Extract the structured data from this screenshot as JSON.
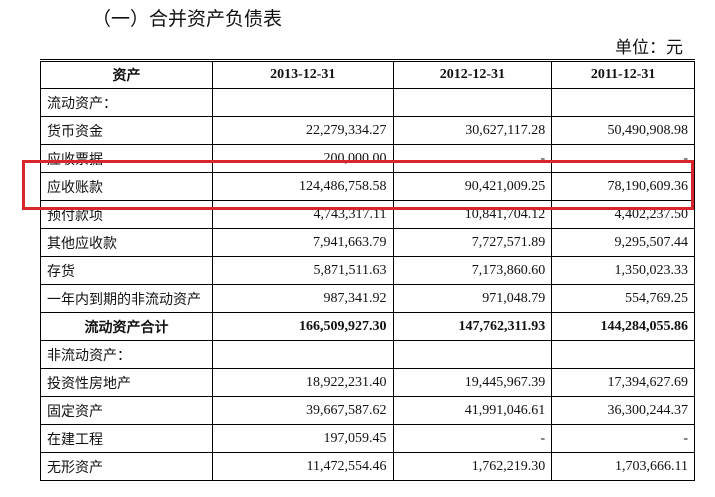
{
  "header": {
    "title": "（一）合并资产负债表",
    "unit": "单位：元"
  },
  "table": {
    "columns": [
      "资产",
      "2013-12-31",
      "2012-12-31",
      "2011-12-31"
    ],
    "rows": [
      {
        "cells": [
          "流动资产："
        ]
      },
      {
        "cells": [
          "货币资金",
          "22,279,334.27",
          "30,627,117.28",
          "50,490,908.98"
        ]
      },
      {
        "cells": [
          "应收票据",
          "200,000.00",
          "-",
          "-"
        ]
      },
      {
        "cells": [
          "应收账款",
          "124,486,758.58",
          "90,421,009.25",
          "78,190,609.36"
        ]
      },
      {
        "cells": [
          "预付款项",
          "4,743,317.11",
          "10,841,704.12",
          "4,402,237.50"
        ]
      },
      {
        "cells": [
          "其他应收款",
          "7,941,663.79",
          "7,727,571.89",
          "9,295,507.44"
        ]
      },
      {
        "cells": [
          "存货",
          "5,871,511.63",
          "7,173,860.60",
          "1,350,023.33"
        ]
      },
      {
        "cells": [
          "一年内到期的非流动资产",
          "987,341.92",
          "971,048.79",
          "554,769.25"
        ]
      },
      {
        "cells": [
          "流动资产合计",
          "166,509,927.30",
          "147,762,311.93",
          "144,284,055.86"
        ],
        "bold": true
      },
      {
        "cells": [
          "非流动资产："
        ]
      },
      {
        "cells": [
          "投资性房地产",
          "18,922,231.40",
          "19,445,967.39",
          "17,394,627.69"
        ]
      },
      {
        "cells": [
          "固定资产",
          "39,667,587.62",
          "41,991,046.61",
          "36,300,244.37"
        ]
      },
      {
        "cells": [
          "在建工程",
          "197,059.45",
          "-",
          "-"
        ]
      },
      {
        "cells": [
          "无形资产",
          "11,472,554.46",
          "1,762,219.30",
          "1,703,666.11"
        ]
      }
    ]
  }
}
